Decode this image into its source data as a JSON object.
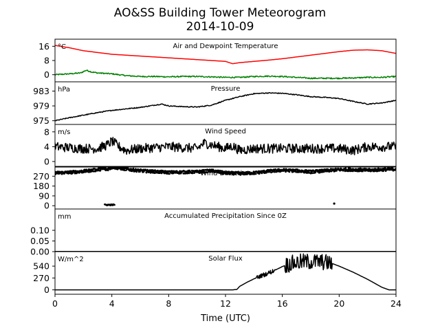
{
  "figure": {
    "title_line1": "AO&SS Building Tower Meteorogram",
    "title_line2": "2014-10-09",
    "xlabel": "Time (UTC)",
    "xticks": [
      0,
      4,
      8,
      12,
      16,
      20,
      24
    ],
    "xlim": [
      0,
      24
    ]
  },
  "chart_data": [
    {
      "type": "line",
      "id": "temp",
      "title": "Air and Dewpoint Temperature",
      "unit": "°C",
      "ylim": [
        -4,
        20
      ],
      "yticks": [
        0,
        8,
        16
      ],
      "series": [
        {
          "color": "#ff0000",
          "width": 1.5,
          "x": [
            0,
            1,
            2,
            3,
            4,
            5,
            6,
            7,
            8,
            9,
            10,
            11,
            12,
            12.5,
            13,
            14,
            15,
            16,
            17,
            18,
            19,
            20,
            21,
            22,
            23,
            24
          ],
          "y": [
            16.5,
            15.2,
            13.5,
            12.5,
            11.5,
            11,
            10.5,
            10,
            9.5,
            9,
            8.5,
            8,
            7.5,
            6.2,
            6.8,
            7.5,
            8.2,
            9,
            10,
            11,
            12,
            13,
            13.8,
            14,
            13.5,
            12
          ]
        },
        {
          "color": "#008000",
          "width": 1.5,
          "noise": 0.35,
          "x": [
            0,
            1,
            1.8,
            2.2,
            2.6,
            3,
            4,
            5,
            6,
            7,
            8,
            9,
            10,
            11,
            12,
            13,
            14,
            15,
            16,
            17,
            18,
            19,
            20,
            21,
            22,
            23,
            24
          ],
          "y": [
            0,
            0.5,
            1,
            2.5,
            1.5,
            1,
            0.5,
            -0.5,
            -1,
            -1,
            -1.2,
            -1,
            -1,
            -1.2,
            -1.5,
            -1.5,
            -1,
            -0.8,
            -1,
            -1.5,
            -2,
            -2,
            -2,
            -1.8,
            -1.5,
            -1.5,
            -1
          ]
        }
      ]
    },
    {
      "type": "line",
      "id": "pressure",
      "title": "Pressure",
      "unit": "hPa",
      "ylim": [
        974,
        985.5
      ],
      "yticks": [
        975,
        979,
        983
      ],
      "series": [
        {
          "color": "#000000",
          "width": 1.5,
          "noise": 0.12,
          "x": [
            0,
            1,
            2,
            3,
            4,
            5,
            6,
            7,
            7.5,
            8,
            9,
            10,
            11,
            12,
            13,
            14,
            15,
            16,
            17,
            18,
            19,
            20,
            21,
            22,
            23,
            24
          ],
          "y": [
            975,
            975.8,
            976.5,
            977.2,
            977.8,
            978.2,
            978.6,
            979.2,
            979.5,
            979,
            978.8,
            978.7,
            979.2,
            980.5,
            981.5,
            982.3,
            982.5,
            982.4,
            982,
            981.5,
            981.3,
            981,
            980.2,
            979.5,
            979.8,
            980.5
          ]
        }
      ]
    },
    {
      "type": "line",
      "id": "wind_speed",
      "title": "Wind Speed",
      "unit": "m/s",
      "ylim": [
        -1.5,
        10
      ],
      "yticks": [
        0,
        4,
        8
      ],
      "series": [
        {
          "color": "#000000",
          "width": 1.5,
          "noise": 1.3,
          "x": [
            0,
            2,
            3,
            3.7,
            4,
            4.5,
            5,
            6,
            8,
            10,
            10.5,
            12,
            12.5,
            13,
            14,
            16,
            18,
            20,
            21,
            22,
            24
          ],
          "y": [
            4,
            3.5,
            3.5,
            4.5,
            5.5,
            4,
            3,
            3.5,
            4,
            3.5,
            5,
            3.5,
            4.2,
            3,
            3.5,
            3.5,
            3.5,
            3.5,
            3,
            4,
            4
          ]
        }
      ]
    },
    {
      "type": "scatter",
      "id": "wind_direction",
      "title": "Wind Direction",
      "unit": "°",
      "ylim": [
        -30,
        360
      ],
      "yticks": [
        0,
        90,
        180,
        270
      ],
      "series": [
        {
          "color": "#000000",
          "radius": 1.3,
          "noise": 14,
          "step": 0.02,
          "x": [
            0,
            1,
            2,
            3,
            3.5,
            3.6,
            4.1,
            4.2,
            5,
            6,
            8,
            10,
            11,
            12,
            13,
            14,
            15,
            16,
            17,
            18,
            19,
            20,
            21,
            22,
            23,
            24
          ],
          "y": [
            300,
            305,
            315,
            330,
            340,
            330,
            355,
            350,
            335,
            320,
            305,
            310,
            320,
            300,
            295,
            300,
            315,
            325,
            320,
            310,
            320,
            330,
            330,
            325,
            330,
            335
          ]
        },
        {
          "color": "#000000",
          "radius": 1.3,
          "noise": 5,
          "step": 0.03,
          "x": [
            3.5,
            4.2
          ],
          "y": [
            8,
            8
          ]
        },
        {
          "color": "#000000",
          "radius": 1.6,
          "noise": 0,
          "step": 0.5,
          "x": [
            19.65,
            19.65
          ],
          "y": [
            20,
            20
          ]
        }
      ]
    },
    {
      "type": "line",
      "id": "precip",
      "title": "Accumulated Precipitation Since 0Z",
      "unit": "mm",
      "ylim": [
        0,
        0.2
      ],
      "yticks": [
        0.0,
        0.05,
        0.1
      ],
      "tick_decimals": 2,
      "series": [
        {
          "color": "#000000",
          "width": 2,
          "x": [
            0,
            24
          ],
          "y": [
            0,
            0
          ]
        }
      ]
    },
    {
      "type": "line",
      "id": "solar",
      "title": "Solar Flux",
      "unit": "W/m^2",
      "ylim": [
        -100,
        870
      ],
      "yticks": [
        0,
        270,
        540
      ],
      "series": [
        {
          "color": "#000000",
          "width": 1.5,
          "noisy_ranges": [
            [
              14.2,
              15.5,
              50
            ],
            [
              16.2,
              19.5,
              190
            ]
          ],
          "x": [
            0,
            12.5,
            12.8,
            13,
            13.5,
            14,
            14.5,
            15,
            15.5,
            16,
            16.5,
            17,
            17.5,
            18,
            18.5,
            19,
            19.5,
            20,
            21,
            22,
            23,
            23.5,
            24
          ],
          "y": [
            0,
            0,
            10,
            80,
            170,
            250,
            320,
            380,
            450,
            530,
            590,
            620,
            640,
            640,
            640,
            630,
            600,
            540,
            400,
            240,
            60,
            0,
            0
          ]
        }
      ]
    }
  ]
}
